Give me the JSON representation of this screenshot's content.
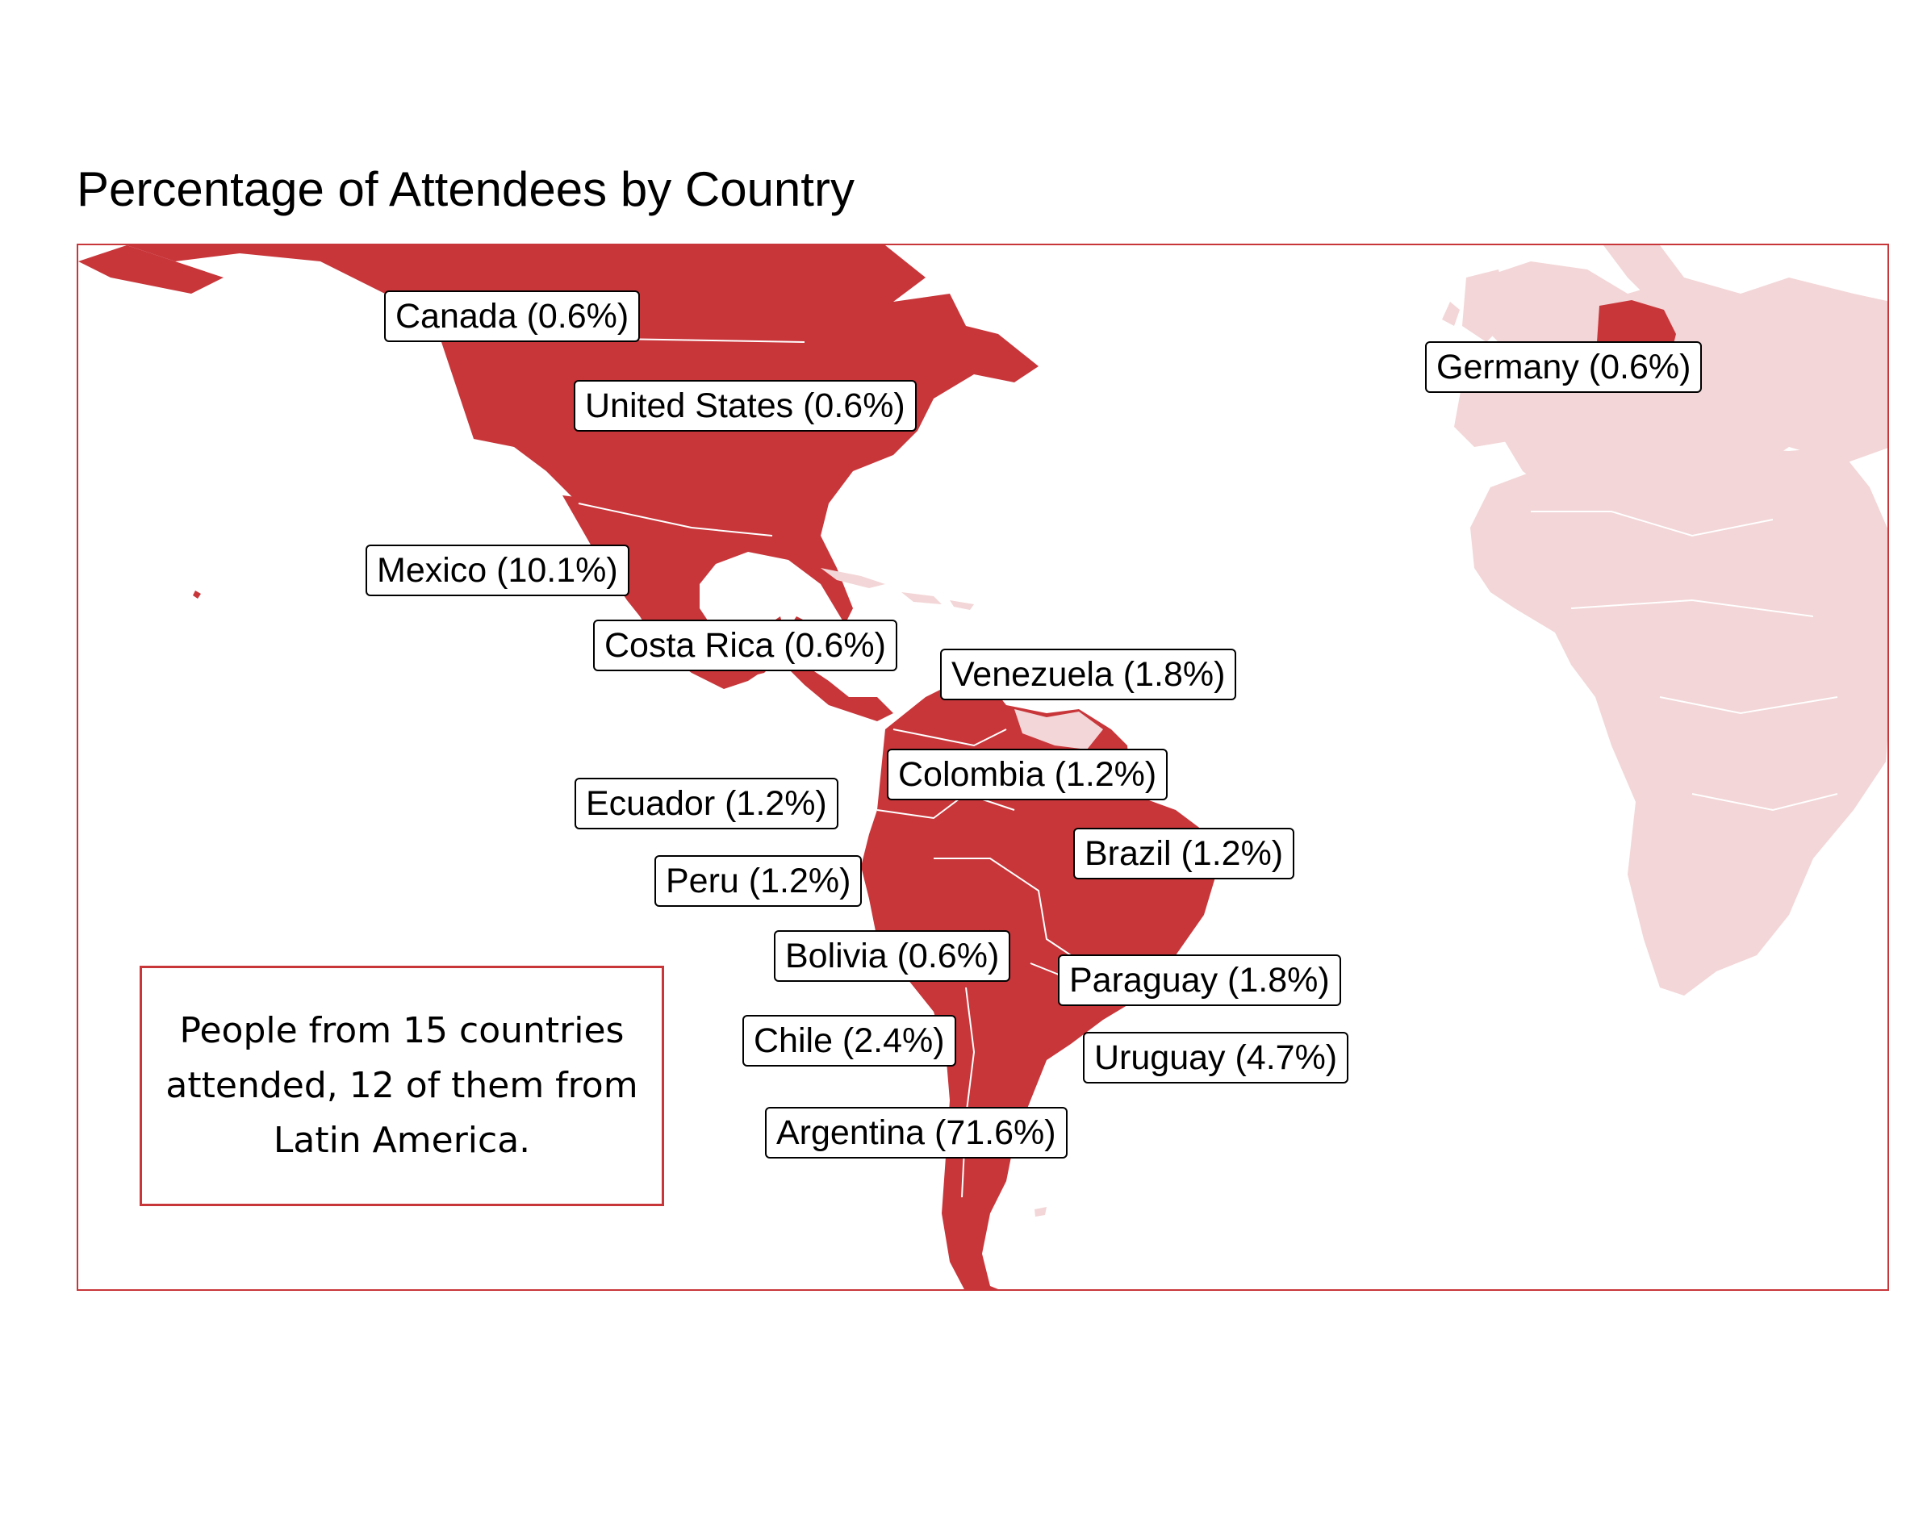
{
  "title": "Percentage of Attendees by Country",
  "note": "People from 15 countries attended, 12 of them from Latin America.",
  "colors": {
    "highlight": "#c8363a",
    "background_land": "#f3d6d7",
    "border": "#ffffff",
    "frame": "#c8363a"
  },
  "map_data": {
    "type": "choropleth",
    "highlighted_countries": [
      {
        "country": "Canada",
        "percent": 0.6,
        "label": "Canada (0.6%)"
      },
      {
        "country": "United States",
        "percent": 0.6,
        "label": "United States (0.6%)"
      },
      {
        "country": "Germany",
        "percent": 0.6,
        "label": "Germany (0.6%)"
      },
      {
        "country": "Mexico",
        "percent": 10.1,
        "label": "Mexico (10.1%)"
      },
      {
        "country": "Costa Rica",
        "percent": 0.6,
        "label": "Costa Rica (0.6%)"
      },
      {
        "country": "Venezuela",
        "percent": 1.8,
        "label": "Venezuela (1.8%)"
      },
      {
        "country": "Colombia",
        "percent": 1.2,
        "label": "Colombia (1.2%)"
      },
      {
        "country": "Ecuador",
        "percent": 1.2,
        "label": "Ecuador (1.2%)"
      },
      {
        "country": "Brazil",
        "percent": 1.2,
        "label": "Brazil (1.2%)"
      },
      {
        "country": "Peru",
        "percent": 1.2,
        "label": "Peru (1.2%)"
      },
      {
        "country": "Bolivia",
        "percent": 0.6,
        "label": "Bolivia (0.6%)"
      },
      {
        "country": "Paraguay",
        "percent": 1.8,
        "label": "Paraguay (1.8%)"
      },
      {
        "country": "Chile",
        "percent": 2.4,
        "label": "Chile (2.4%)"
      },
      {
        "country": "Uruguay",
        "percent": 4.7,
        "label": "Uruguay (4.7%)"
      },
      {
        "country": "Argentina",
        "percent": 71.6,
        "label": "Argentina (71.6%)"
      }
    ]
  }
}
